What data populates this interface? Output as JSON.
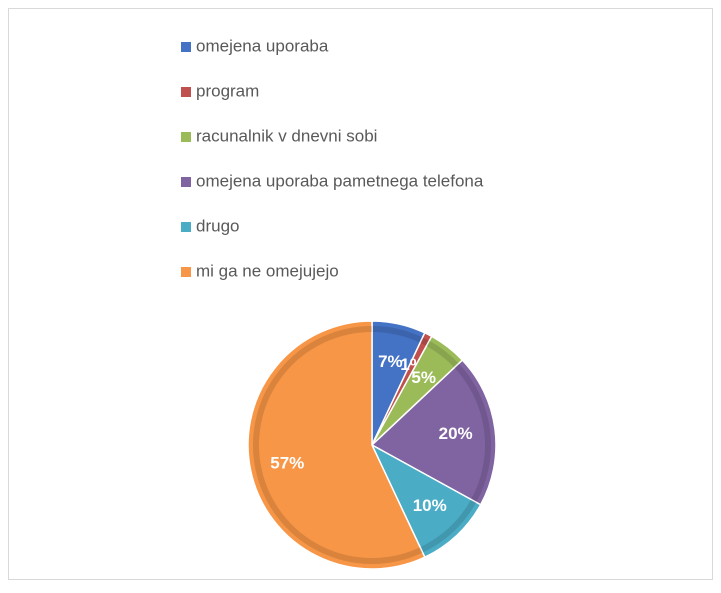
{
  "chart_data": {
    "type": "pie",
    "categories": [
      "omejena uporaba",
      "program",
      "racunalnik v dnevni sobi",
      "omejena uporaba pametnega telefona",
      "drugo",
      "mi ga ne omejujejo"
    ],
    "values": [
      7,
      1,
      5,
      20,
      10,
      57
    ],
    "value_labels": [
      "7%",
      "1%",
      "5%",
      "20%",
      "10%",
      "57%"
    ],
    "colors": [
      "#4472c4",
      "#c0504d",
      "#9bbb59",
      "#8064a2",
      "#4bacc6",
      "#f79646"
    ],
    "legend": "top"
  }
}
